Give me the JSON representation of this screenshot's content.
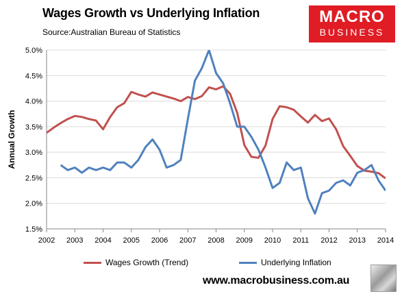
{
  "header": {
    "title": "Wages Growth vs Underlying Inflation",
    "source": "Source:Australian Bureau of Statistics"
  },
  "logo": {
    "line1": "MACRO",
    "line2": "BUSINESS"
  },
  "footer": {
    "url": "www.macrobusiness.com.au"
  },
  "colors": {
    "wages": "#c0504d",
    "inflation": "#4f81bd",
    "logo_bg": "#e01c24"
  },
  "chart_data": {
    "type": "line",
    "title": "Wages Growth vs Underlying Inflation",
    "xlabel": "",
    "ylabel": "Annual Growth",
    "xlim": [
      2002,
      2014
    ],
    "ylim": [
      1.5,
      5.0
    ],
    "x_ticks": [
      "2002",
      "2003",
      "2004",
      "2005",
      "2006",
      "2007",
      "2008",
      "2009",
      "2010",
      "2011",
      "2012",
      "2013",
      "2014"
    ],
    "y_ticks": [
      "1.5%",
      "2.0%",
      "2.5%",
      "3.0%",
      "3.5%",
      "4.0%",
      "4.5%",
      "5.0%"
    ],
    "grid": true,
    "legend": "bottom",
    "series": [
      {
        "name": "Wages Growth (Trend)",
        "color": "#c0504d",
        "x": [
          2002.0,
          2002.25,
          2002.5,
          2002.75,
          2003.0,
          2003.25,
          2003.5,
          2003.75,
          2004.0,
          2004.25,
          2004.5,
          2004.75,
          2005.0,
          2005.25,
          2005.5,
          2005.75,
          2006.0,
          2006.25,
          2006.5,
          2006.75,
          2007.0,
          2007.25,
          2007.5,
          2007.75,
          2008.0,
          2008.25,
          2008.5,
          2008.75,
          2009.0,
          2009.25,
          2009.5,
          2009.75,
          2010.0,
          2010.25,
          2010.5,
          2010.75,
          2011.0,
          2011.25,
          2011.5,
          2011.75,
          2012.0,
          2012.25,
          2012.5,
          2012.75,
          2013.0,
          2013.25,
          2013.5,
          2013.75,
          2014.0
        ],
        "values": [
          3.38,
          3.48,
          3.57,
          3.65,
          3.71,
          3.69,
          3.65,
          3.62,
          3.45,
          3.69,
          3.88,
          3.96,
          4.18,
          4.13,
          4.09,
          4.17,
          4.13,
          4.09,
          4.05,
          4.0,
          4.08,
          4.04,
          4.1,
          4.27,
          4.23,
          4.29,
          4.14,
          3.77,
          3.14,
          2.91,
          2.89,
          3.13,
          3.65,
          3.9,
          3.88,
          3.83,
          3.7,
          3.58,
          3.73,
          3.61,
          3.66,
          3.45,
          3.12,
          2.93,
          2.73,
          2.64,
          2.62,
          2.59,
          2.49
        ]
      },
      {
        "name": "Underlying Inflation",
        "color": "#4f81bd",
        "x": [
          2002.5,
          2002.75,
          2003.0,
          2003.25,
          2003.5,
          2003.75,
          2004.0,
          2004.25,
          2004.5,
          2004.75,
          2005.0,
          2005.25,
          2005.5,
          2005.75,
          2006.0,
          2006.25,
          2006.5,
          2006.75,
          2007.0,
          2007.25,
          2007.5,
          2007.75,
          2008.0,
          2008.25,
          2008.5,
          2008.75,
          2009.0,
          2009.25,
          2009.5,
          2009.75,
          2010.0,
          2010.25,
          2010.5,
          2010.75,
          2011.0,
          2011.25,
          2011.5,
          2011.75,
          2012.0,
          2012.25,
          2012.5,
          2012.75,
          2013.0,
          2013.25,
          2013.5,
          2013.75,
          2014.0
        ],
        "values": [
          2.75,
          2.65,
          2.7,
          2.6,
          2.7,
          2.65,
          2.7,
          2.65,
          2.8,
          2.8,
          2.7,
          2.85,
          3.1,
          3.25,
          3.05,
          2.7,
          2.75,
          2.85,
          3.65,
          4.4,
          4.65,
          5.0,
          4.55,
          4.35,
          3.95,
          3.5,
          3.5,
          3.3,
          3.05,
          2.7,
          2.3,
          2.4,
          2.8,
          2.65,
          2.7,
          2.1,
          1.8,
          2.2,
          2.25,
          2.4,
          2.45,
          2.35,
          2.6,
          2.65,
          2.75,
          2.45,
          2.25
        ]
      }
    ]
  }
}
